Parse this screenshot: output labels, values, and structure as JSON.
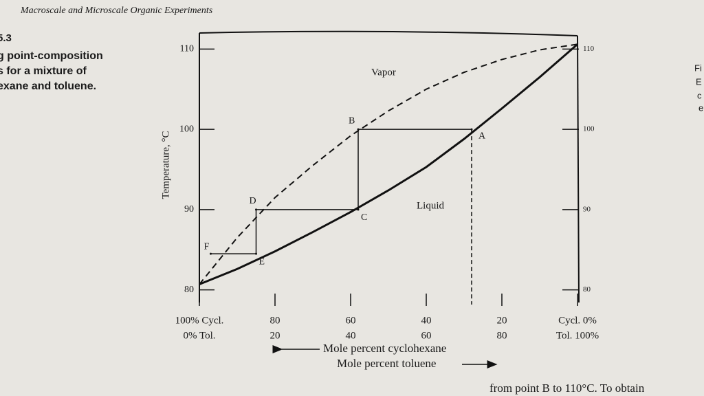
{
  "page": {
    "header": "Macroscale and Microscale Organic Experiments",
    "caption": [
      "5.3",
      "g point-composition",
      "s for a mixture of",
      "exane and toluene."
    ],
    "margin": [
      "Fi",
      "E",
      "c",
      "e"
    ],
    "footer": "from point B to 110°C. To obtain"
  },
  "chart_data": {
    "type": "line",
    "ylabel": "Temperature, °C",
    "xlabel": "Mole percent cyclohexane",
    "x2label": "Mole percent toluene",
    "x": [
      100,
      90,
      80,
      70,
      60,
      50,
      40,
      30,
      20,
      10,
      0
    ],
    "series": [
      {
        "name": "Liquid",
        "color": "#111111",
        "style": "solid",
        "values": [
          80.7,
          82.6,
          84.8,
          87.2,
          89.7,
          92.4,
          95.3,
          98.8,
          102.6,
          106.5,
          110.6
        ]
      },
      {
        "name": "Vapor",
        "color": "#111111",
        "style": "dashed",
        "values": [
          80.7,
          86.5,
          91.5,
          95.5,
          99.2,
          102.3,
          105,
          107.1,
          108.7,
          109.9,
          110.6
        ]
      }
    ],
    "points": [
      {
        "label": "A",
        "x": 28,
        "y": 100
      },
      {
        "label": "B",
        "x": 58,
        "y": 100
      },
      {
        "label": "C",
        "x": 58,
        "y": 90
      },
      {
        "label": "D",
        "x": 85,
        "y": 90
      },
      {
        "label": "E",
        "x": 85,
        "y": 84.5
      },
      {
        "label": "F",
        "x": 97,
        "y": 84.5
      }
    ],
    "xlim": [
      100,
      0
    ],
    "xticks": [
      {
        "value": 100,
        "label": "100% Cycl."
      },
      80,
      60,
      40,
      20,
      {
        "value": 0,
        "label": "Cycl. 0%"
      }
    ],
    "x2lim": [
      0,
      100
    ],
    "x2ticks": [
      {
        "value": 0,
        "label": "0% Tol."
      },
      20,
      40,
      60,
      80,
      {
        "value": 100,
        "label": "Tol. 100%"
      }
    ],
    "ylim": [
      78,
      112
    ],
    "yticks": [
      80,
      90,
      100,
      110
    ]
  }
}
